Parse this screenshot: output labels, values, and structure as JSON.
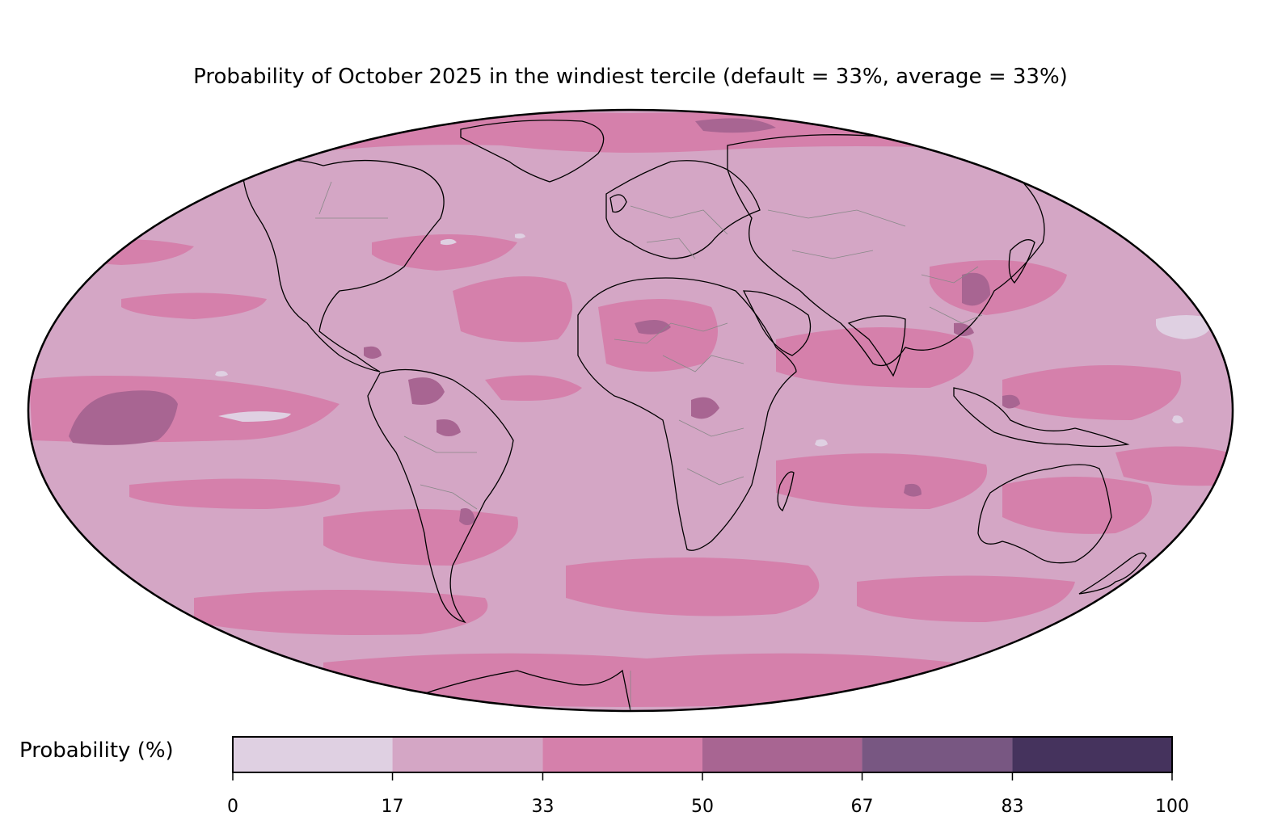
{
  "title": "Probability of October 2025 in the windiest tercile (default = 33%, average = 33%)",
  "map": {
    "projection": "Mollweide",
    "variable": "Probability of windiest tercile",
    "base_color": "#d4a6c5"
  },
  "colorbar": {
    "label": "Probability (%)",
    "ticks": [
      "0",
      "17",
      "33",
      "50",
      "67",
      "83",
      "100"
    ],
    "tick_values": [
      0,
      17,
      33,
      50,
      67,
      83,
      100
    ],
    "bins": [
      {
        "from": 0,
        "to": 17,
        "color": "#dfd0e2"
      },
      {
        "from": 17,
        "to": 33,
        "color": "#d4a6c5"
      },
      {
        "from": 33,
        "to": 50,
        "color": "#d580ab"
      },
      {
        "from": 50,
        "to": 67,
        "color": "#a86592"
      },
      {
        "from": 67,
        "to": 83,
        "color": "#785782"
      },
      {
        "from": 83,
        "to": 100,
        "color": "#45335d"
      }
    ]
  }
}
